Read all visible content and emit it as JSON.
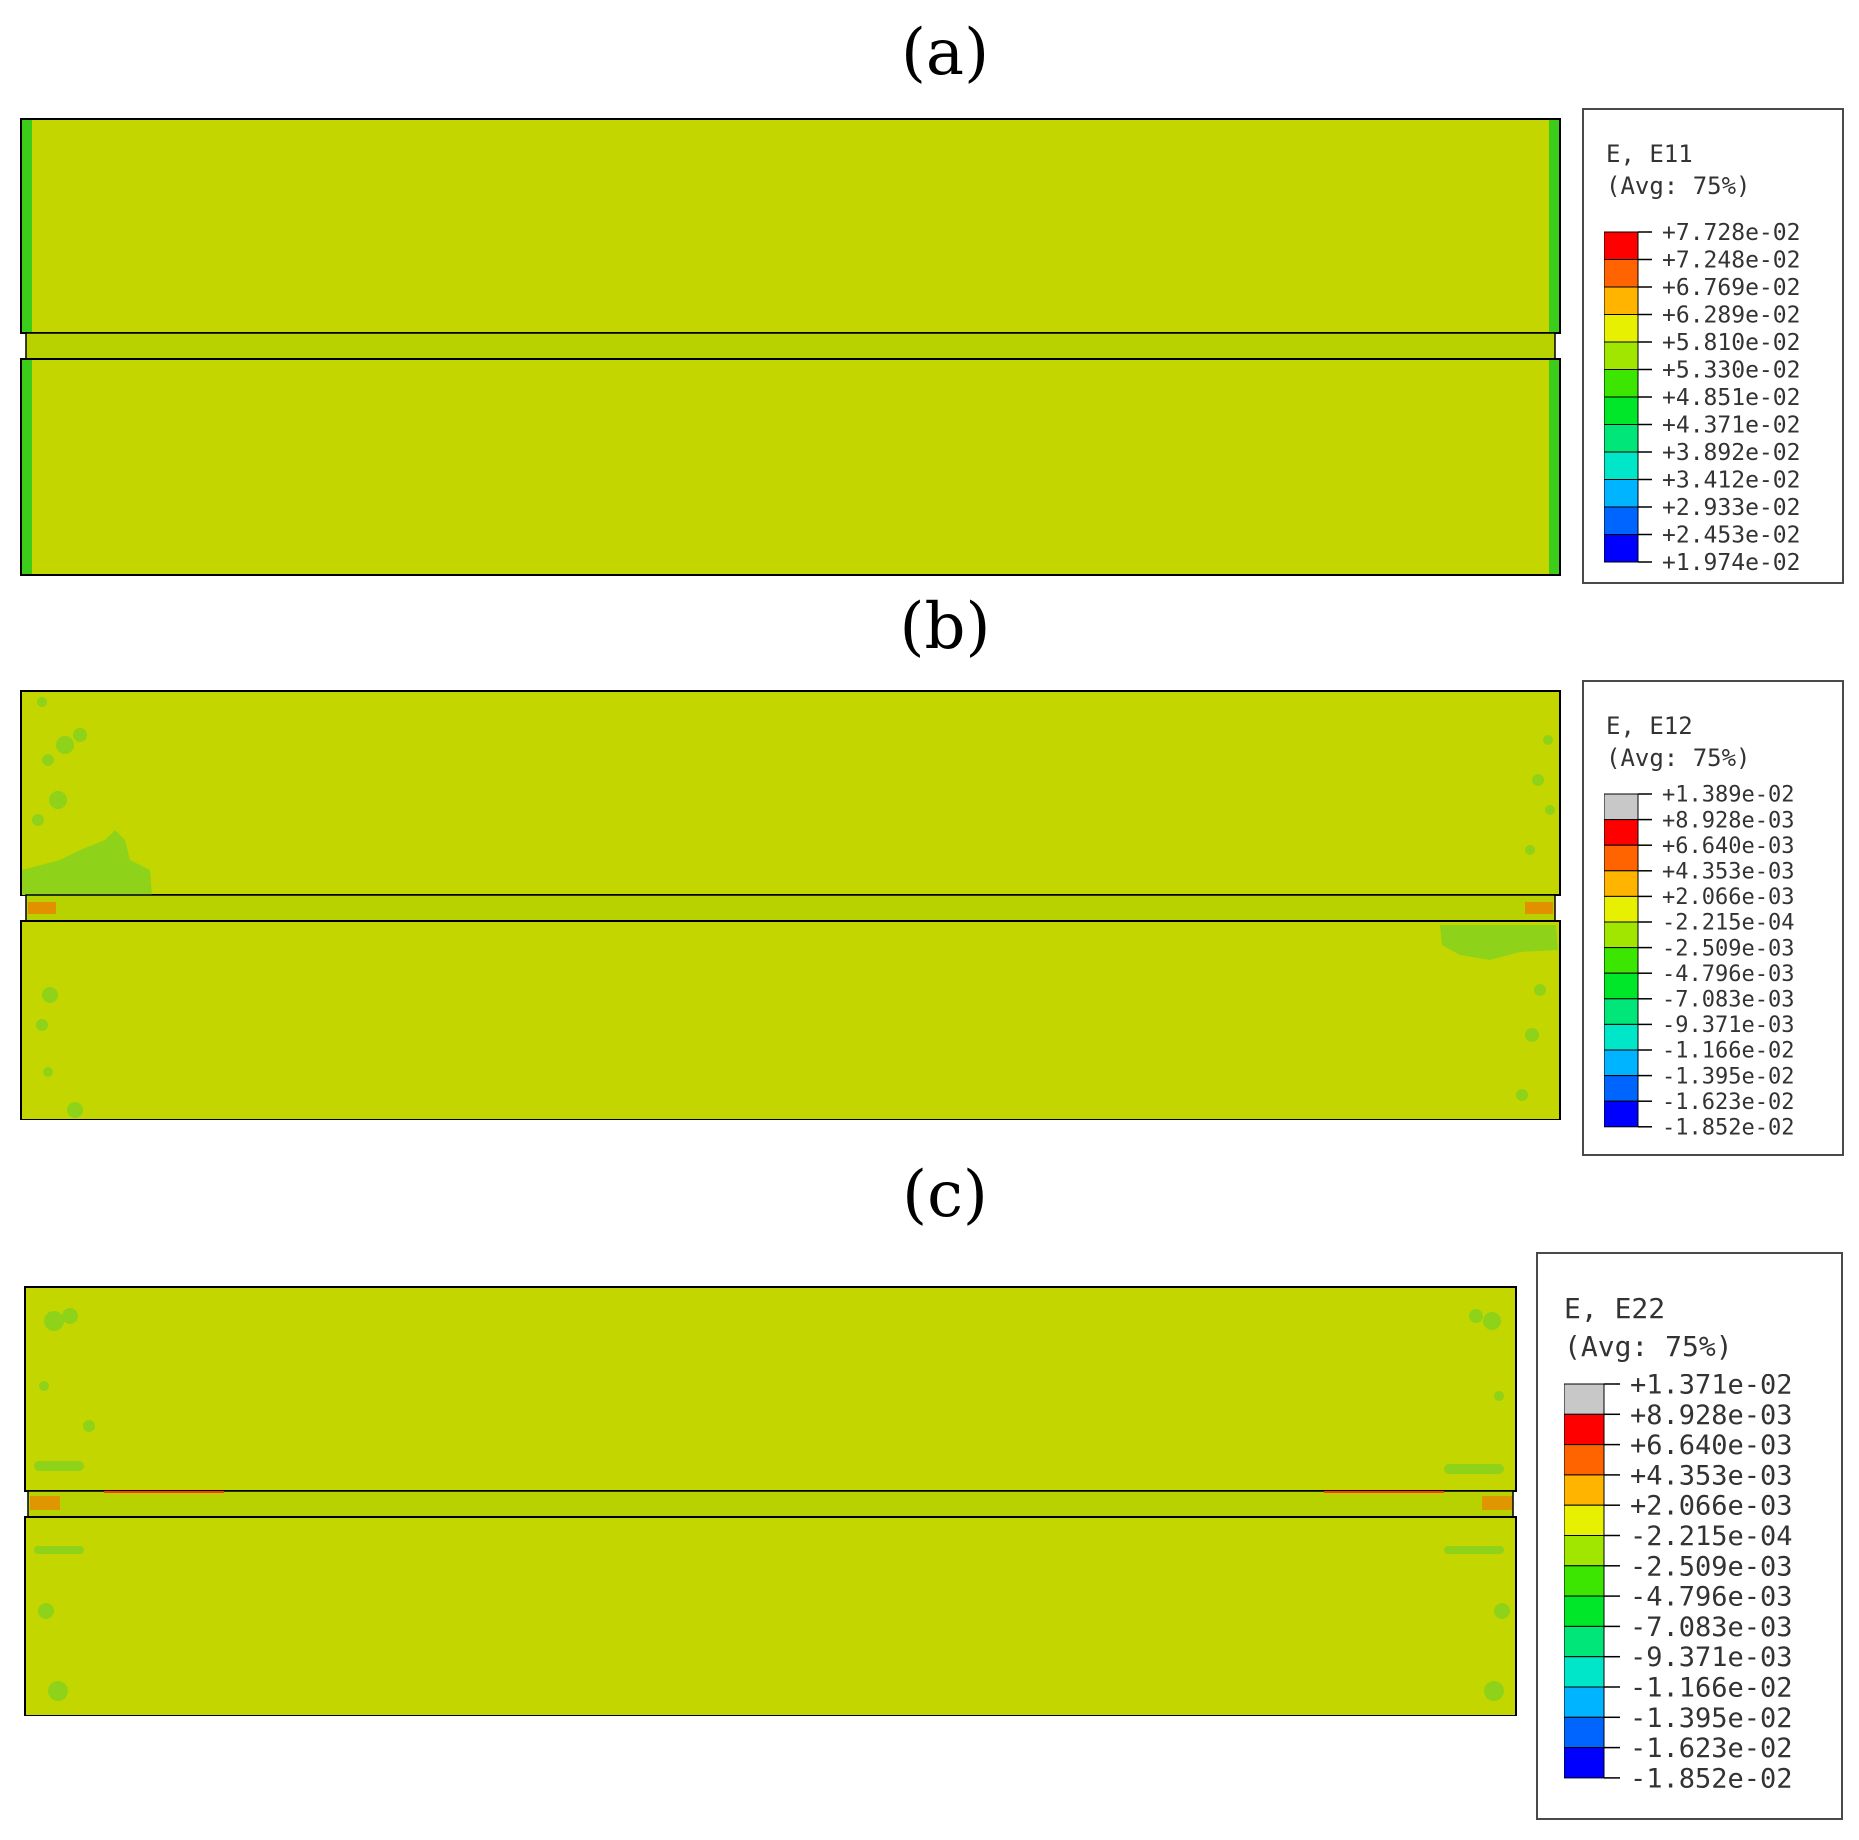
{
  "panels": [
    {
      "label": "(a)",
      "legend": {
        "title1": "E, E11",
        "title2": "(Avg: 75%)",
        "values": [
          "+7.728e-02",
          "+7.248e-02",
          "+6.769e-02",
          "+6.289e-02",
          "+5.810e-02",
          "+5.330e-02",
          "+4.851e-02",
          "+4.371e-02",
          "+3.892e-02",
          "+3.412e-02",
          "+2.933e-02",
          "+2.453e-02",
          "+1.974e-02"
        ],
        "colors": [
          "#ff0000",
          "#ff6400",
          "#ffb400",
          "#e6f000",
          "#a0e600",
          "#3ce600",
          "#00e628",
          "#00e678",
          "#00e6c8",
          "#00b4ff",
          "#0064ff",
          "#0000ff"
        ]
      }
    },
    {
      "label": "(b)",
      "legend": {
        "title1": "E, E12",
        "title2": "(Avg: 75%)",
        "values": [
          "+1.389e-02",
          "+8.928e-03",
          "+6.640e-03",
          "+4.353e-03",
          "+2.066e-03",
          "-2.215e-04",
          "-2.509e-03",
          "-4.796e-03",
          "-7.083e-03",
          "-9.371e-03",
          "-1.166e-02",
          "-1.395e-02",
          "-1.623e-02",
          "-1.852e-02"
        ],
        "colors": [
          "#c8c8c8",
          "#ff0000",
          "#ff6400",
          "#ffb400",
          "#e6f000",
          "#a0e600",
          "#3ce600",
          "#00e628",
          "#00e678",
          "#00e6c8",
          "#00b4ff",
          "#0064ff",
          "#0000ff"
        ]
      }
    },
    {
      "label": "(c)",
      "legend": {
        "title1": "E, E22",
        "title2": "(Avg: 75%)",
        "values": [
          "+1.371e-02",
          "+8.928e-03",
          "+6.640e-03",
          "+4.353e-03",
          "+2.066e-03",
          "-2.215e-04",
          "-2.509e-03",
          "-4.796e-03",
          "-7.083e-03",
          "-9.371e-03",
          "-1.166e-02",
          "-1.395e-02",
          "-1.623e-02",
          "-1.852e-02"
        ],
        "colors": [
          "#c8c8c8",
          "#ff0000",
          "#ff6400",
          "#ffb400",
          "#e6f000",
          "#a0e600",
          "#3ce600",
          "#00e628",
          "#00e678",
          "#00e6c8",
          "#00b4ff",
          "#0064ff",
          "#0000ff"
        ]
      }
    }
  ],
  "contour_color": "#c4d600",
  "patch_color": "#8fd21a"
}
